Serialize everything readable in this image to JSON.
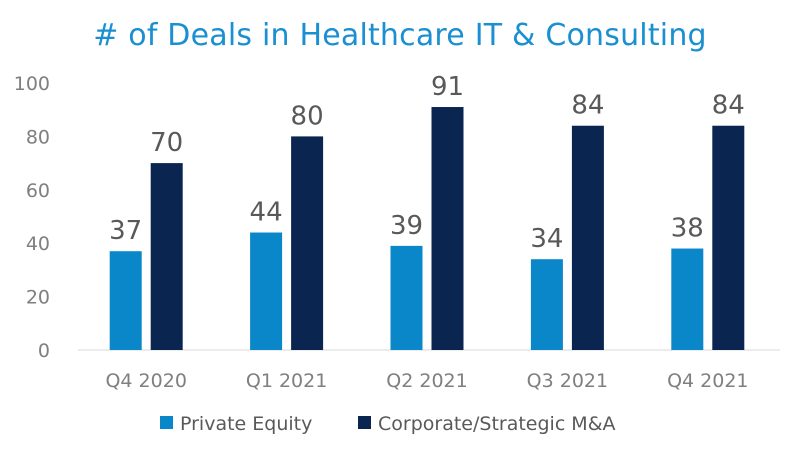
{
  "chart_data": {
    "type": "bar",
    "title": "# of Deals in Healthcare IT & Consulting",
    "xlabel": "",
    "ylabel": "",
    "categories": [
      "Q4 2020",
      "Q1 2021",
      "Q2 2021",
      "Q3 2021",
      "Q4 2021"
    ],
    "series": [
      {
        "name": "Private Equity",
        "values": [
          37,
          44,
          39,
          34,
          38
        ],
        "color": "#0a87c9"
      },
      {
        "name": "Corporate/Strategic M&A",
        "values": [
          70,
          80,
          91,
          84,
          84
        ],
        "color": "#0a2550"
      }
    ],
    "ylim": [
      0,
      100
    ],
    "yticks": [
      0,
      20,
      40,
      60,
      80,
      100
    ],
    "grid": false,
    "data_labels": true,
    "legend_position": "bottom",
    "colors": {
      "title": "#1a8fd1",
      "axis_text": "#7f7f7f",
      "data_label": "#595959"
    }
  }
}
